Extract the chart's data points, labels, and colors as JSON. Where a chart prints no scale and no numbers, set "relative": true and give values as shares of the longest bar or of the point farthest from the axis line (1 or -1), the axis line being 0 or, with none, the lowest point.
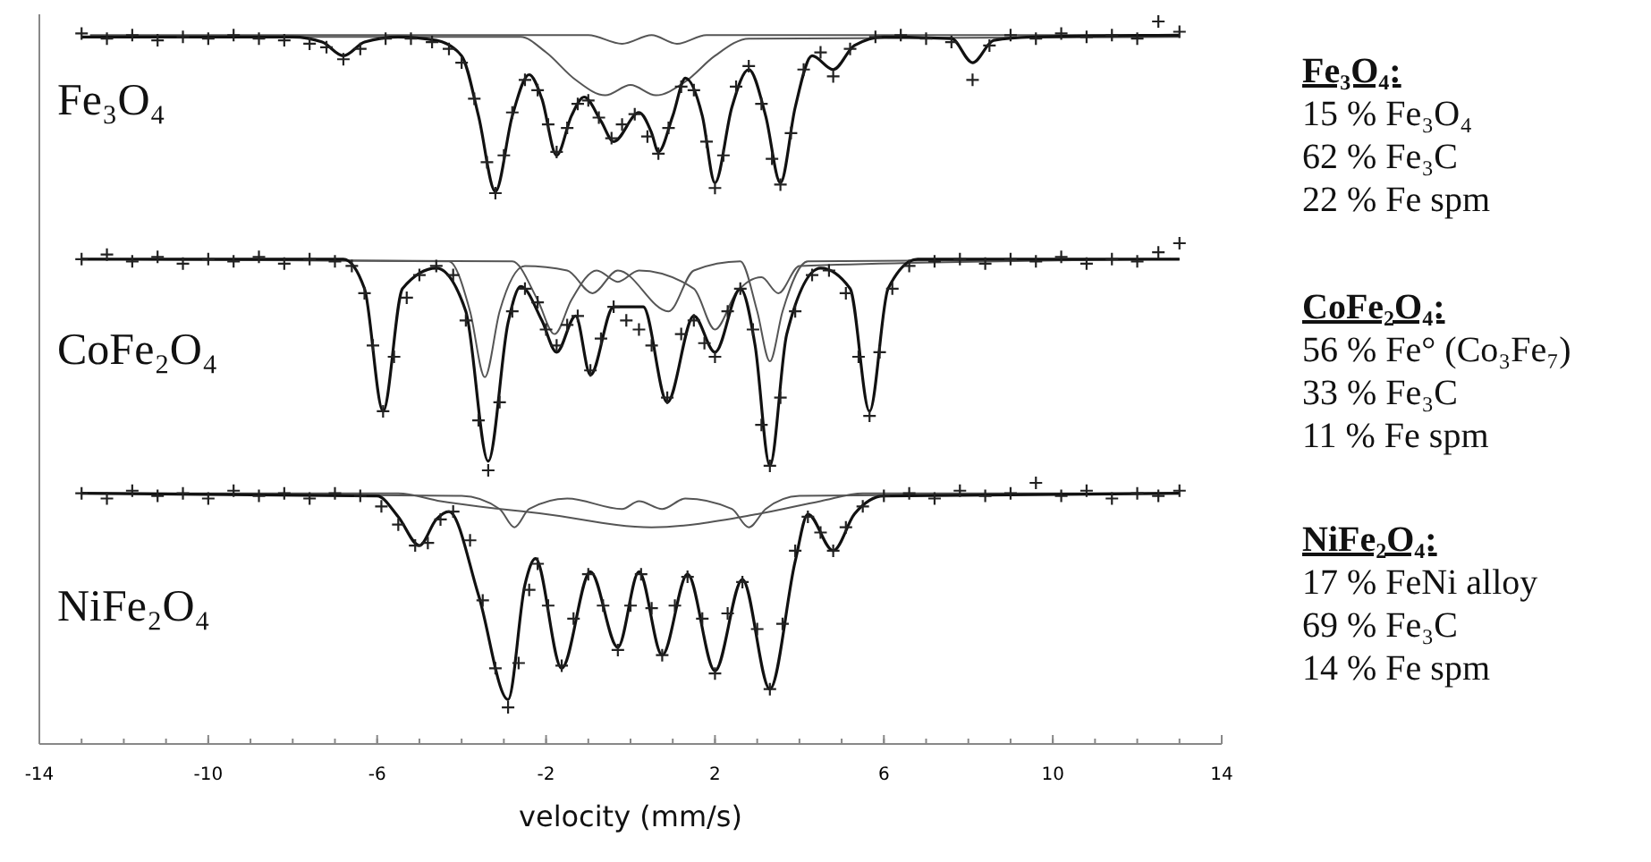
{
  "chart_data": [
    {
      "type": "line",
      "title": "Fe₃O₄",
      "relative": true,
      "xlim": [
        -14,
        14
      ],
      "tick_labels": false,
      "annotations": [
        "Fe₃O₄:",
        "15  % Fe₃O₄",
        "62 % Fe₃C",
        "22 % Fe spm"
      ],
      "series": [
        {
          "type": "line",
          "color": "#555555",
          "x": [
            -13,
            -2.6,
            -2,
            -1.3,
            -0.6,
            0,
            0.6,
            1.3,
            2,
            2.8,
            13
          ],
          "values": [
            0.91,
            0.91,
            0.82,
            0.66,
            0.57,
            0.63,
            0.57,
            0.65,
            0.8,
            0.9,
            0.91
          ]
        },
        {
          "type": "line",
          "color": "#555555",
          "x": [
            -12.8,
            -1,
            -0.2,
            0.5,
            1.1,
            1.8,
            12.8
          ],
          "values": [
            0.92,
            0.92,
            0.87,
            0.92,
            0.87,
            0.92,
            0.92
          ]
        },
        {
          "type": "line",
          "color": "#111111",
          "x": [
            -13,
            -8,
            -7.3,
            -6.8,
            -6.3,
            -5.5,
            -4.6,
            -4,
            -3.6,
            -3.2,
            -2.8,
            -2.4,
            -2.1,
            -1.75,
            -1.4,
            -1.1,
            -0.7,
            -0.4,
            0.2,
            0.5,
            0.66,
            1,
            1.3,
            1.7,
            2,
            2.4,
            2.8,
            3.2,
            3.55,
            3.9,
            4.3,
            4.8,
            5.3,
            6,
            7.6,
            8.1,
            8.6,
            9.5,
            13
          ],
          "values": [
            0.91,
            0.91,
            0.88,
            0.8,
            0.88,
            0.91,
            0.89,
            0.8,
            0.45,
            0.01,
            0.45,
            0.69,
            0.55,
            0.22,
            0.45,
            0.56,
            0.42,
            0.3,
            0.47,
            0.35,
            0.24,
            0.45,
            0.67,
            0.45,
            0.06,
            0.5,
            0.72,
            0.45,
            0.06,
            0.5,
            0.8,
            0.72,
            0.86,
            0.91,
            0.9,
            0.76,
            0.89,
            0.91,
            0.92
          ]
        },
        {
          "type": "scatter",
          "marker": "cross",
          "color": "#222222",
          "x": [
            -13,
            -12.4,
            -11.8,
            -11.2,
            -10.6,
            -10,
            -9.4,
            -8.8,
            -8.2,
            -7.6,
            -7.2,
            -6.8,
            -6.4,
            -5.8,
            -5.2,
            -4.7,
            -4.3,
            -4,
            -3.7,
            -3.4,
            -3.2,
            -3,
            -2.8,
            -2.5,
            -2.2,
            -1.95,
            -1.75,
            -1.5,
            -1.25,
            -1,
            -0.75,
            -0.45,
            -0.2,
            0.1,
            0.4,
            0.66,
            0.9,
            1.2,
            1.5,
            1.8,
            2,
            2.2,
            2.5,
            2.8,
            3.1,
            3.35,
            3.55,
            3.8,
            4.1,
            4.5,
            4.8,
            5.2,
            5.8,
            6.4,
            7,
            7.6,
            8.1,
            8.5,
            9,
            9.6,
            10.2,
            10.8,
            11.4,
            12,
            12.5,
            13
          ],
          "values": [
            0.93,
            0.9,
            0.92,
            0.89,
            0.91,
            0.9,
            0.92,
            0.9,
            0.89,
            0.87,
            0.85,
            0.78,
            0.84,
            0.9,
            0.9,
            0.88,
            0.84,
            0.76,
            0.55,
            0.18,
            0,
            0.22,
            0.47,
            0.66,
            0.6,
            0.4,
            0.24,
            0.38,
            0.52,
            0.54,
            0.44,
            0.32,
            0.4,
            0.46,
            0.33,
            0.23,
            0.38,
            0.62,
            0.6,
            0.3,
            0.03,
            0.22,
            0.62,
            0.74,
            0.52,
            0.2,
            0.05,
            0.35,
            0.72,
            0.82,
            0.68,
            0.84,
            0.91,
            0.92,
            0.9,
            0.88,
            0.66,
            0.86,
            0.92,
            0.9,
            0.93,
            0.91,
            0.92,
            0.9,
            1,
            0.94
          ]
        }
      ]
    },
    {
      "type": "line",
      "title": "CoFe₂O₄",
      "relative": true,
      "xlim": [
        -14,
        14
      ],
      "tick_labels": false,
      "annotations": [
        "CoFe₂O₄:",
        "56 % Fe° (Co₃Fe₇)",
        "33 % Fe₃C",
        "11 % Fe spm"
      ],
      "series": [
        {
          "type": "line",
          "color": "#555555",
          "x": [
            -13,
            -4.3,
            -3.8,
            -3.45,
            -3.1,
            -2.5,
            -1.5,
            -0.9,
            -0.3,
            0.9,
            1.5,
            2.6,
            3,
            3.3,
            3.6,
            4.2,
            13
          ],
          "values": [
            0.93,
            0.92,
            0.7,
            0.41,
            0.7,
            0.9,
            0.88,
            0.78,
            0.88,
            0.7,
            0.88,
            0.92,
            0.7,
            0.48,
            0.7,
            0.92,
            0.93
          ]
        },
        {
          "type": "line",
          "color": "#555555",
          "x": [
            -12.8,
            -2.8,
            -2.2,
            -1.8,
            -1.4,
            -0.8,
            -0.3,
            0.2,
            1.5,
            2,
            2.5,
            3.1,
            3.5,
            4,
            12.8
          ],
          "values": [
            0.93,
            0.92,
            0.75,
            0.6,
            0.75,
            0.88,
            0.83,
            0.88,
            0.8,
            0.62,
            0.78,
            0.85,
            0.78,
            0.9,
            0.93
          ]
        },
        {
          "type": "line",
          "color": "#111111",
          "x": [
            -13,
            -6.8,
            -6.3,
            -5.86,
            -5.4,
            -4.6,
            -3.9,
            -3.37,
            -2.9,
            -2.6,
            -2.1,
            -1.75,
            -1.3,
            -0.95,
            -0.4,
            0.3,
            0.87,
            1.5,
            2,
            2.6,
            2.95,
            3.3,
            3.7,
            4.5,
            5.2,
            5.66,
            6.1,
            6.8,
            13
          ],
          "values": [
            0.93,
            0.93,
            0.8,
            0.26,
            0.8,
            0.89,
            0.7,
            0.04,
            0.65,
            0.81,
            0.66,
            0.52,
            0.68,
            0.42,
            0.72,
            0.72,
            0.3,
            0.68,
            0.52,
            0.8,
            0.55,
            0.02,
            0.6,
            0.89,
            0.8,
            0.26,
            0.8,
            0.93,
            0.93
          ]
        },
        {
          "type": "scatter",
          "marker": "cross",
          "color": "#222222",
          "x": [
            -13,
            -12.4,
            -11.8,
            -11.2,
            -10.6,
            -10,
            -9.4,
            -8.8,
            -8.2,
            -7.6,
            -7,
            -6.6,
            -6.3,
            -6.1,
            -5.86,
            -5.6,
            -5.3,
            -5,
            -4.6,
            -4.2,
            -3.9,
            -3.6,
            -3.37,
            -3.1,
            -2.8,
            -2.5,
            -2.2,
            -2,
            -1.75,
            -1.5,
            -1.25,
            -0.95,
            -0.7,
            -0.4,
            -0.1,
            0.2,
            0.5,
            0.87,
            1.2,
            1.5,
            1.75,
            2,
            2.3,
            2.6,
            2.9,
            3.1,
            3.3,
            3.55,
            3.9,
            4.3,
            4.7,
            5.1,
            5.4,
            5.66,
            5.9,
            6.2,
            6.6,
            7.2,
            7.8,
            8.4,
            9,
            9.6,
            10.2,
            10.8,
            11.4,
            12,
            12.5,
            13
          ],
          "values": [
            0.93,
            0.95,
            0.92,
            0.94,
            0.91,
            0.93,
            0.92,
            0.94,
            0.91,
            0.93,
            0.92,
            0.9,
            0.78,
            0.55,
            0.26,
            0.5,
            0.76,
            0.86,
            0.9,
            0.86,
            0.66,
            0.22,
            0,
            0.3,
            0.7,
            0.8,
            0.74,
            0.62,
            0.55,
            0.64,
            0.68,
            0.44,
            0.58,
            0.72,
            0.66,
            0.62,
            0.55,
            0.32,
            0.6,
            0.66,
            0.56,
            0.5,
            0.7,
            0.8,
            0.62,
            0.2,
            0.02,
            0.32,
            0.7,
            0.86,
            0.88,
            0.78,
            0.5,
            0.24,
            0.52,
            0.8,
            0.9,
            0.92,
            0.93,
            0.91,
            0.93,
            0.92,
            0.94,
            0.91,
            0.93,
            0.92,
            0.96,
            1
          ]
        }
      ]
    },
    {
      "type": "line",
      "title": "NiFe₂O₄",
      "xlabel": "velocity (mm/s)",
      "relative": true,
      "xlim": [
        -14,
        14
      ],
      "xticks": [
        -14,
        -10,
        -6,
        -2,
        2,
        6,
        10,
        14
      ],
      "tick_labels": "x",
      "annotations": [
        "NiFe₂O₄:",
        "17 % FeNi alloy",
        "69 % Fe₃C",
        "14 % Fe spm"
      ],
      "series": [
        {
          "type": "line",
          "color": "#555555",
          "x": [
            -13,
            -4,
            -3.1,
            -2.75,
            -2.4,
            -1.5,
            -0.2,
            0.2,
            0.75,
            1.3,
            2.4,
            2.8,
            3.2,
            4,
            13
          ],
          "values": [
            0.96,
            0.95,
            0.9,
            0.83,
            0.9,
            0.94,
            0.9,
            0.93,
            0.9,
            0.94,
            0.9,
            0.83,
            0.9,
            0.95,
            0.96
          ]
        },
        {
          "type": "line",
          "color": "#555555",
          "x": [
            -12.8,
            -5.5,
            -4.5,
            -2,
            0.5,
            3,
            4.5,
            5.5,
            12.8
          ],
          "values": [
            0.96,
            0.96,
            0.93,
            0.88,
            0.83,
            0.88,
            0.93,
            0.96,
            0.96
          ]
        },
        {
          "type": "line",
          "color": "#111111",
          "x": [
            -13,
            -6,
            -5.5,
            -5,
            -4.6,
            -4.3,
            -3.6,
            -2.9,
            -2.5,
            -2.25,
            -1.63,
            -0.95,
            -0.3,
            0.2,
            0.75,
            1.35,
            2,
            2.65,
            3.3,
            3.9,
            4.2,
            4.8,
            5.3,
            6,
            13
          ],
          "values": [
            0.96,
            0.95,
            0.87,
            0.76,
            0.86,
            0.89,
            0.57,
            0.17,
            0.61,
            0.71,
            0.29,
            0.66,
            0.37,
            0.66,
            0.34,
            0.65,
            0.28,
            0.63,
            0.21,
            0.7,
            0.88,
            0.74,
            0.88,
            0.95,
            0.96
          ]
        },
        {
          "type": "scatter",
          "marker": "cross",
          "color": "#222222",
          "x": [
            -13,
            -12.4,
            -11.8,
            -11.2,
            -10.6,
            -10,
            -9.4,
            -8.8,
            -8.2,
            -7.6,
            -7,
            -6.4,
            -5.9,
            -5.5,
            -5.1,
            -4.8,
            -4.5,
            -4.2,
            -3.8,
            -3.5,
            -3.2,
            -2.9,
            -2.65,
            -2.4,
            -2.2,
            -1.95,
            -1.63,
            -1.35,
            -1,
            -0.65,
            -0.3,
            0,
            0.25,
            0.5,
            0.75,
            1.05,
            1.35,
            1.7,
            2,
            2.3,
            2.65,
            3,
            3.3,
            3.6,
            3.9,
            4.2,
            4.5,
            4.8,
            5.1,
            5.5,
            6,
            6.6,
            7.2,
            7.8,
            8.4,
            9,
            9.6,
            10.2,
            10.8,
            11.4,
            12,
            12.5,
            13
          ],
          "values": [
            0.96,
            0.94,
            0.97,
            0.95,
            0.96,
            0.94,
            0.97,
            0.95,
            0.96,
            0.94,
            0.96,
            0.95,
            0.91,
            0.84,
            0.76,
            0.77,
            0.86,
            0.89,
            0.78,
            0.55,
            0.29,
            0.14,
            0.31,
            0.59,
            0.69,
            0.53,
            0.3,
            0.48,
            0.65,
            0.53,
            0.36,
            0.53,
            0.65,
            0.52,
            0.34,
            0.53,
            0.64,
            0.48,
            0.27,
            0.5,
            0.62,
            0.44,
            0.21,
            0.46,
            0.74,
            0.87,
            0.81,
            0.74,
            0.83,
            0.91,
            0.95,
            0.96,
            0.94,
            0.97,
            0.95,
            0.96,
            1,
            0.95,
            0.97,
            0.94,
            0.96,
            0.95,
            0.97
          ]
        }
      ]
    }
  ]
}
